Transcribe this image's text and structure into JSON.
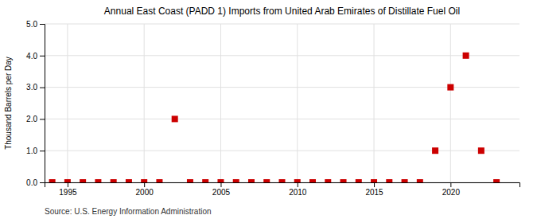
{
  "chart_data": {
    "type": "scatter",
    "title": "Annual East Coast (PADD 1) Imports from United Arab Emirates of Distillate Fuel Oil",
    "ylabel": "Thousand Barrels per Day",
    "annotations": [
      "Source: U.S. Energy Information Administration"
    ],
    "x": [
      1994,
      1995,
      1996,
      1997,
      1998,
      1999,
      2000,
      2001,
      2002,
      2003,
      2004,
      2005,
      2006,
      2007,
      2008,
      2009,
      2010,
      2011,
      2012,
      2013,
      2014,
      2015,
      2016,
      2017,
      2018,
      2019,
      2020,
      2021,
      2022,
      2023
    ],
    "values": [
      0,
      0,
      0,
      0,
      0,
      0,
      0,
      0,
      2.0,
      0,
      0,
      0,
      0,
      0,
      0,
      0,
      0,
      0,
      0,
      0,
      0,
      0,
      0,
      0,
      0,
      1.0,
      3.0,
      4.0,
      1.0,
      0
    ],
    "color": "#cc0000",
    "marker": "square",
    "xlim": [
      1993.5,
      2024.5
    ],
    "ylim": [
      0.0,
      5.0
    ],
    "xticks": [
      1995,
      2000,
      2005,
      2010,
      2015,
      2020
    ],
    "yticks": [
      {
        "value": 0.0,
        "label": "0.0"
      },
      {
        "value": 1.0,
        "label": "1.0"
      },
      {
        "value": 2.0,
        "label": "2.0"
      },
      {
        "value": 3.0,
        "label": "3.0"
      },
      {
        "value": 4.0,
        "label": "4.0"
      },
      {
        "value": 5.0,
        "label": "5.0"
      }
    ],
    "grid": true
  }
}
